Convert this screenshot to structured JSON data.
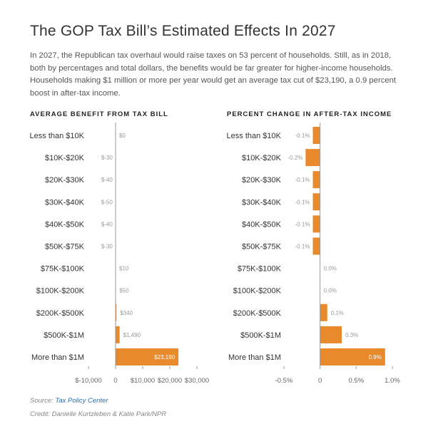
{
  "title": "The GOP Tax Bill’s Estimated Effects In 2027",
  "subtitle": "In 2027, the Republican tax overhaul would raise taxes on 53 percent of households. Still, as in 2018, both by percentages and total dollars, the benefits would be far greater for higher-income households. Households making $1 million or more per year would get an average tax cut of $23,190, a 0.9 percent boost in after-tax income.",
  "colors": {
    "bar": "#e8892b",
    "axis": "#999999",
    "label": "#999999",
    "text": "#333333"
  },
  "footer": {
    "source_prefix": "Source: ",
    "source_link": "Tax Policy Center",
    "credit": "Credit: Danielle Kurtzleben & Katie Park/NPR"
  },
  "chart_data": [
    {
      "type": "bar",
      "orientation": "horizontal",
      "title": "AVERAGE BENEFIT FROM TAX BILL",
      "categories": [
        "Less than $10K",
        "$10K-$20K",
        "$20K-$30K",
        "$30K-$40K",
        "$40K-$50K",
        "$50K-$75K",
        "$75K-$100K",
        "$100K-$200K",
        "$200K-$500K",
        "$500K-$1M",
        "More than $1M"
      ],
      "values": [
        0,
        -30,
        -40,
        -50,
        -40,
        -30,
        10,
        50,
        340,
        1490,
        23190
      ],
      "value_labels": [
        "$0",
        "$-30",
        "$-40",
        "$-50",
        "$-40",
        "$-30",
        "$10",
        "$50",
        "$340",
        "$1,490",
        "$23,190"
      ],
      "xlim": [
        -10000,
        30000
      ],
      "xticks": [
        -10000,
        0,
        10000,
        20000,
        30000
      ],
      "xtick_labels": [
        "$-10,000",
        "0",
        "$10,000",
        "$20,000",
        "$30,000"
      ]
    },
    {
      "type": "bar",
      "orientation": "horizontal",
      "title": "PERCENT CHANGE IN AFTER-TAX INCOME",
      "categories": [
        "Less than $10K",
        "$10K-$20K",
        "$20K-$30K",
        "$30K-$40K",
        "$40K-$50K",
        "$50K-$75K",
        "$75K-$100K",
        "$100K-$200K",
        "$200K-$500K",
        "$500K-$1M",
        "More than $1M"
      ],
      "values": [
        -0.1,
        -0.2,
        -0.1,
        -0.1,
        -0.1,
        -0.1,
        0.0,
        0.0,
        0.1,
        0.3,
        0.9
      ],
      "value_labels": [
        "-0.1%",
        "-0.2%",
        "-0.1%",
        "-0.1%",
        "-0.1%",
        "-0.1%",
        "0.0%",
        "0.0%",
        "0.1%",
        "0.3%",
        "0.9%"
      ],
      "xlim": [
        -0.5,
        1.0
      ],
      "xticks": [
        -0.5,
        0,
        0.5,
        1.0
      ],
      "xtick_labels": [
        "-0.5%",
        "0",
        "0.5%",
        "1.0%"
      ]
    }
  ]
}
